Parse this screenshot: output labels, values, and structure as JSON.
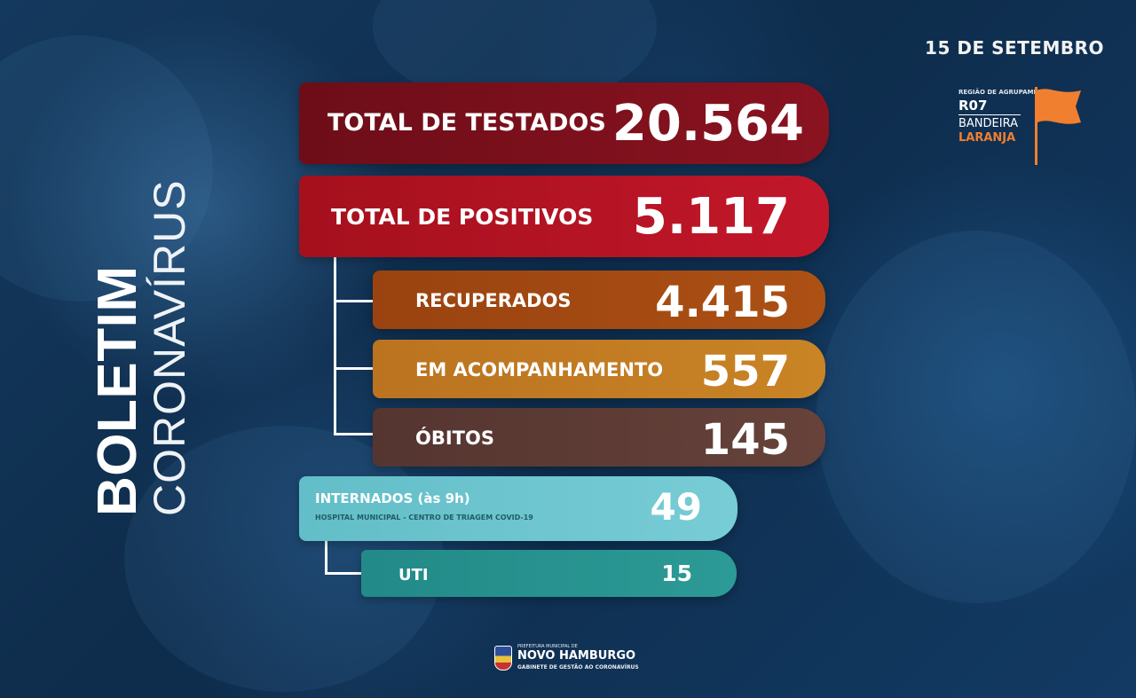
{
  "header": {
    "date": "15 DE SETEMBRO"
  },
  "flag_badge": {
    "region_caption": "REGIÃO DE AGRUPAMENTO",
    "region_code": "R07",
    "flag_word": "BANDEIRA",
    "flag_color_word": "LARANJA",
    "flag_color": "#f07f2f"
  },
  "title": {
    "main": "BOLETIM",
    "sub": "CORONAVÍRUS"
  },
  "stats": {
    "testados": {
      "label": "TOTAL DE TESTADOS",
      "value": "20.564",
      "color": "#7a0f1c"
    },
    "positivos": {
      "label": "TOTAL DE POSITIVOS",
      "value": "5.117",
      "color": "#b01220"
    },
    "recuperados": {
      "label": "RECUPERADOS",
      "value": "4.415",
      "color": "#a44a10"
    },
    "acompanhamento": {
      "label": "EM ACOMPANHAMENTO",
      "value": "557",
      "color": "#c47b20"
    },
    "obitos": {
      "label": "ÓBITOS",
      "value": "145",
      "color": "#5e3b33"
    },
    "internados": {
      "label": "INTERNADOS (às 9h)",
      "sublabel": "HOSPITAL MUNICIPAL - CENTRO DE TRIAGEM COVID-19",
      "value": "49",
      "color": "#6cc5cf"
    },
    "uti": {
      "label": "UTI",
      "value": "15",
      "color": "#27928f"
    }
  },
  "footer": {
    "top_line": "PREFEITURA MUNICIPAL DE",
    "name": "NOVO HAMBURGO",
    "bottom_line": "GABINETE DE GESTÃO AO CORONAVÍRUS"
  }
}
